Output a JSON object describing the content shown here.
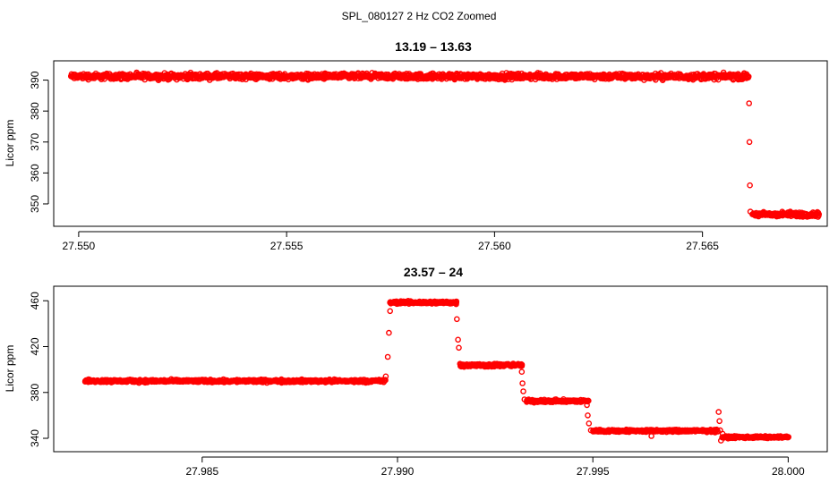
{
  "figure_title": "SPL_080127  2 Hz CO2 Zoomed",
  "chart_data": [
    {
      "type": "scatter",
      "title": "13.19 – 13.63",
      "xlabel": "",
      "ylabel": "Licor ppm",
      "xlim": [
        27.5494,
        27.568
      ],
      "ylim": [
        344.5,
        394.5
      ],
      "xticks": [
        {
          "value": 27.55,
          "label": "27.550"
        },
        {
          "value": 27.555,
          "label": "27.555"
        },
        {
          "value": 27.56,
          "label": "27.560"
        },
        {
          "value": 27.565,
          "label": "27.565"
        }
      ],
      "yticks": [
        {
          "value": 350,
          "label": "350"
        },
        {
          "value": 360,
          "label": "360"
        },
        {
          "value": 370,
          "label": "370"
        },
        {
          "value": 380,
          "label": "380"
        },
        {
          "value": 390,
          "label": "390"
        }
      ],
      "series": [
        {
          "color": "#ff0000",
          "marker": "open-circle",
          "segments": [
            {
              "x_start": 27.5498,
              "x_end": 27.5661,
              "y_mean": 391.2,
              "y_spread": 1.4
            },
            {
              "x_start": 27.5662,
              "x_end": 27.5678,
              "y_mean": 346.6,
              "y_spread": 1.2
            }
          ],
          "points": [
            {
              "x": 27.56612,
              "y": 382.5
            },
            {
              "x": 27.56613,
              "y": 370.0
            },
            {
              "x": 27.56614,
              "y": 356.0
            },
            {
              "x": 27.56615,
              "y": 347.5
            }
          ]
        }
      ],
      "grid": false,
      "legend": "none"
    },
    {
      "type": "scatter",
      "title": "23.57 – 24",
      "xlabel": "",
      "ylabel": "Licor ppm",
      "xlim": [
        27.9812,
        28.001
      ],
      "ylim": [
        333.0,
        468.0
      ],
      "xticks": [
        {
          "value": 27.985,
          "label": "27.985"
        },
        {
          "value": 27.99,
          "label": "27.990"
        },
        {
          "value": 27.995,
          "label": "27.995"
        },
        {
          "value": 28.0,
          "label": "28.000"
        }
      ],
      "yticks": [
        {
          "value": 340,
          "label": "340"
        },
        {
          "value": 380,
          "label": "380"
        },
        {
          "value": 420,
          "label": "420"
        },
        {
          "value": 460,
          "label": "460"
        }
      ],
      "series": [
        {
          "color": "#ff0000",
          "marker": "open-circle",
          "segments": [
            {
              "x_start": 27.982,
              "x_end": 27.9897,
              "y_mean": 390.0,
              "y_spread": 1.8
            },
            {
              "x_start": 27.9898,
              "x_end": 27.9915,
              "y_mean": 458.5,
              "y_spread": 1.8
            },
            {
              "x_start": 27.9916,
              "x_end": 27.9932,
              "y_mean": 403.8,
              "y_spread": 2.0
            },
            {
              "x_start": 27.9933,
              "x_end": 27.9949,
              "y_mean": 372.5,
              "y_spread": 1.8
            },
            {
              "x_start": 27.995,
              "x_end": 27.9982,
              "y_mean": 346.5,
              "y_spread": 1.6
            },
            {
              "x_start": 27.9983,
              "x_end": 28.0,
              "y_mean": 341.0,
              "y_spread": 1.4
            }
          ],
          "points": [
            {
              "x": 27.9897,
              "y": 394.0
            },
            {
              "x": 27.98975,
              "y": 411.0
            },
            {
              "x": 27.98978,
              "y": 432.0
            },
            {
              "x": 27.98981,
              "y": 451.0
            },
            {
              "x": 27.9915,
              "y": 457.0
            },
            {
              "x": 27.99152,
              "y": 444.0
            },
            {
              "x": 27.99155,
              "y": 426.0
            },
            {
              "x": 27.99157,
              "y": 419.0
            },
            {
              "x": 27.9916,
              "y": 405.0
            },
            {
              "x": 27.99318,
              "y": 398.0
            },
            {
              "x": 27.9932,
              "y": 388.0
            },
            {
              "x": 27.99322,
              "y": 381.0
            },
            {
              "x": 27.99325,
              "y": 374.0
            },
            {
              "x": 27.99485,
              "y": 369.0
            },
            {
              "x": 27.99487,
              "y": 360.0
            },
            {
              "x": 27.9949,
              "y": 353.0
            },
            {
              "x": 27.99495,
              "y": 347.0
            },
            {
              "x": 27.9965,
              "y": 342.0
            },
            {
              "x": 27.99822,
              "y": 363.0
            },
            {
              "x": 27.99824,
              "y": 355.0
            },
            {
              "x": 27.99826,
              "y": 347.0
            },
            {
              "x": 27.99828,
              "y": 338.0
            },
            {
              "x": 27.99832,
              "y": 344.0
            }
          ]
        }
      ],
      "grid": false,
      "legend": "none"
    }
  ]
}
